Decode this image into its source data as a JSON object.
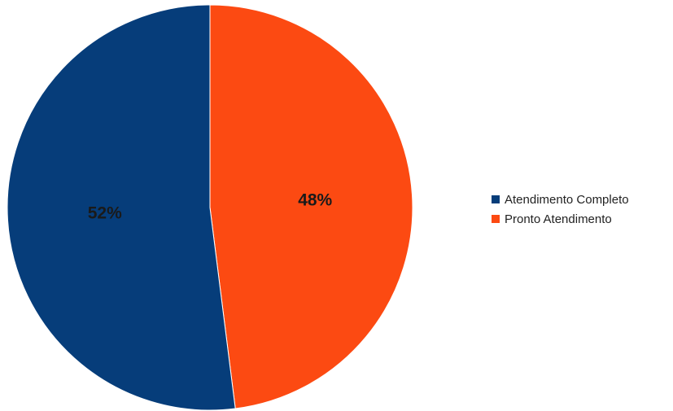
{
  "chart_data": {
    "type": "pie",
    "slices": [
      {
        "label": "Pronto Atendimento",
        "value": 48,
        "value_label": "48%",
        "color": "#fc4a12"
      },
      {
        "label": "Atendimento Completo",
        "value": 52,
        "value_label": "52%",
        "color": "#063d7a"
      }
    ],
    "legend": {
      "position": "right",
      "items": [
        {
          "label": "Atendimento Completo",
          "color": "#063d7a"
        },
        {
          "label": "Pronto Atendimento",
          "color": "#fc4a12"
        }
      ]
    },
    "title": ""
  }
}
